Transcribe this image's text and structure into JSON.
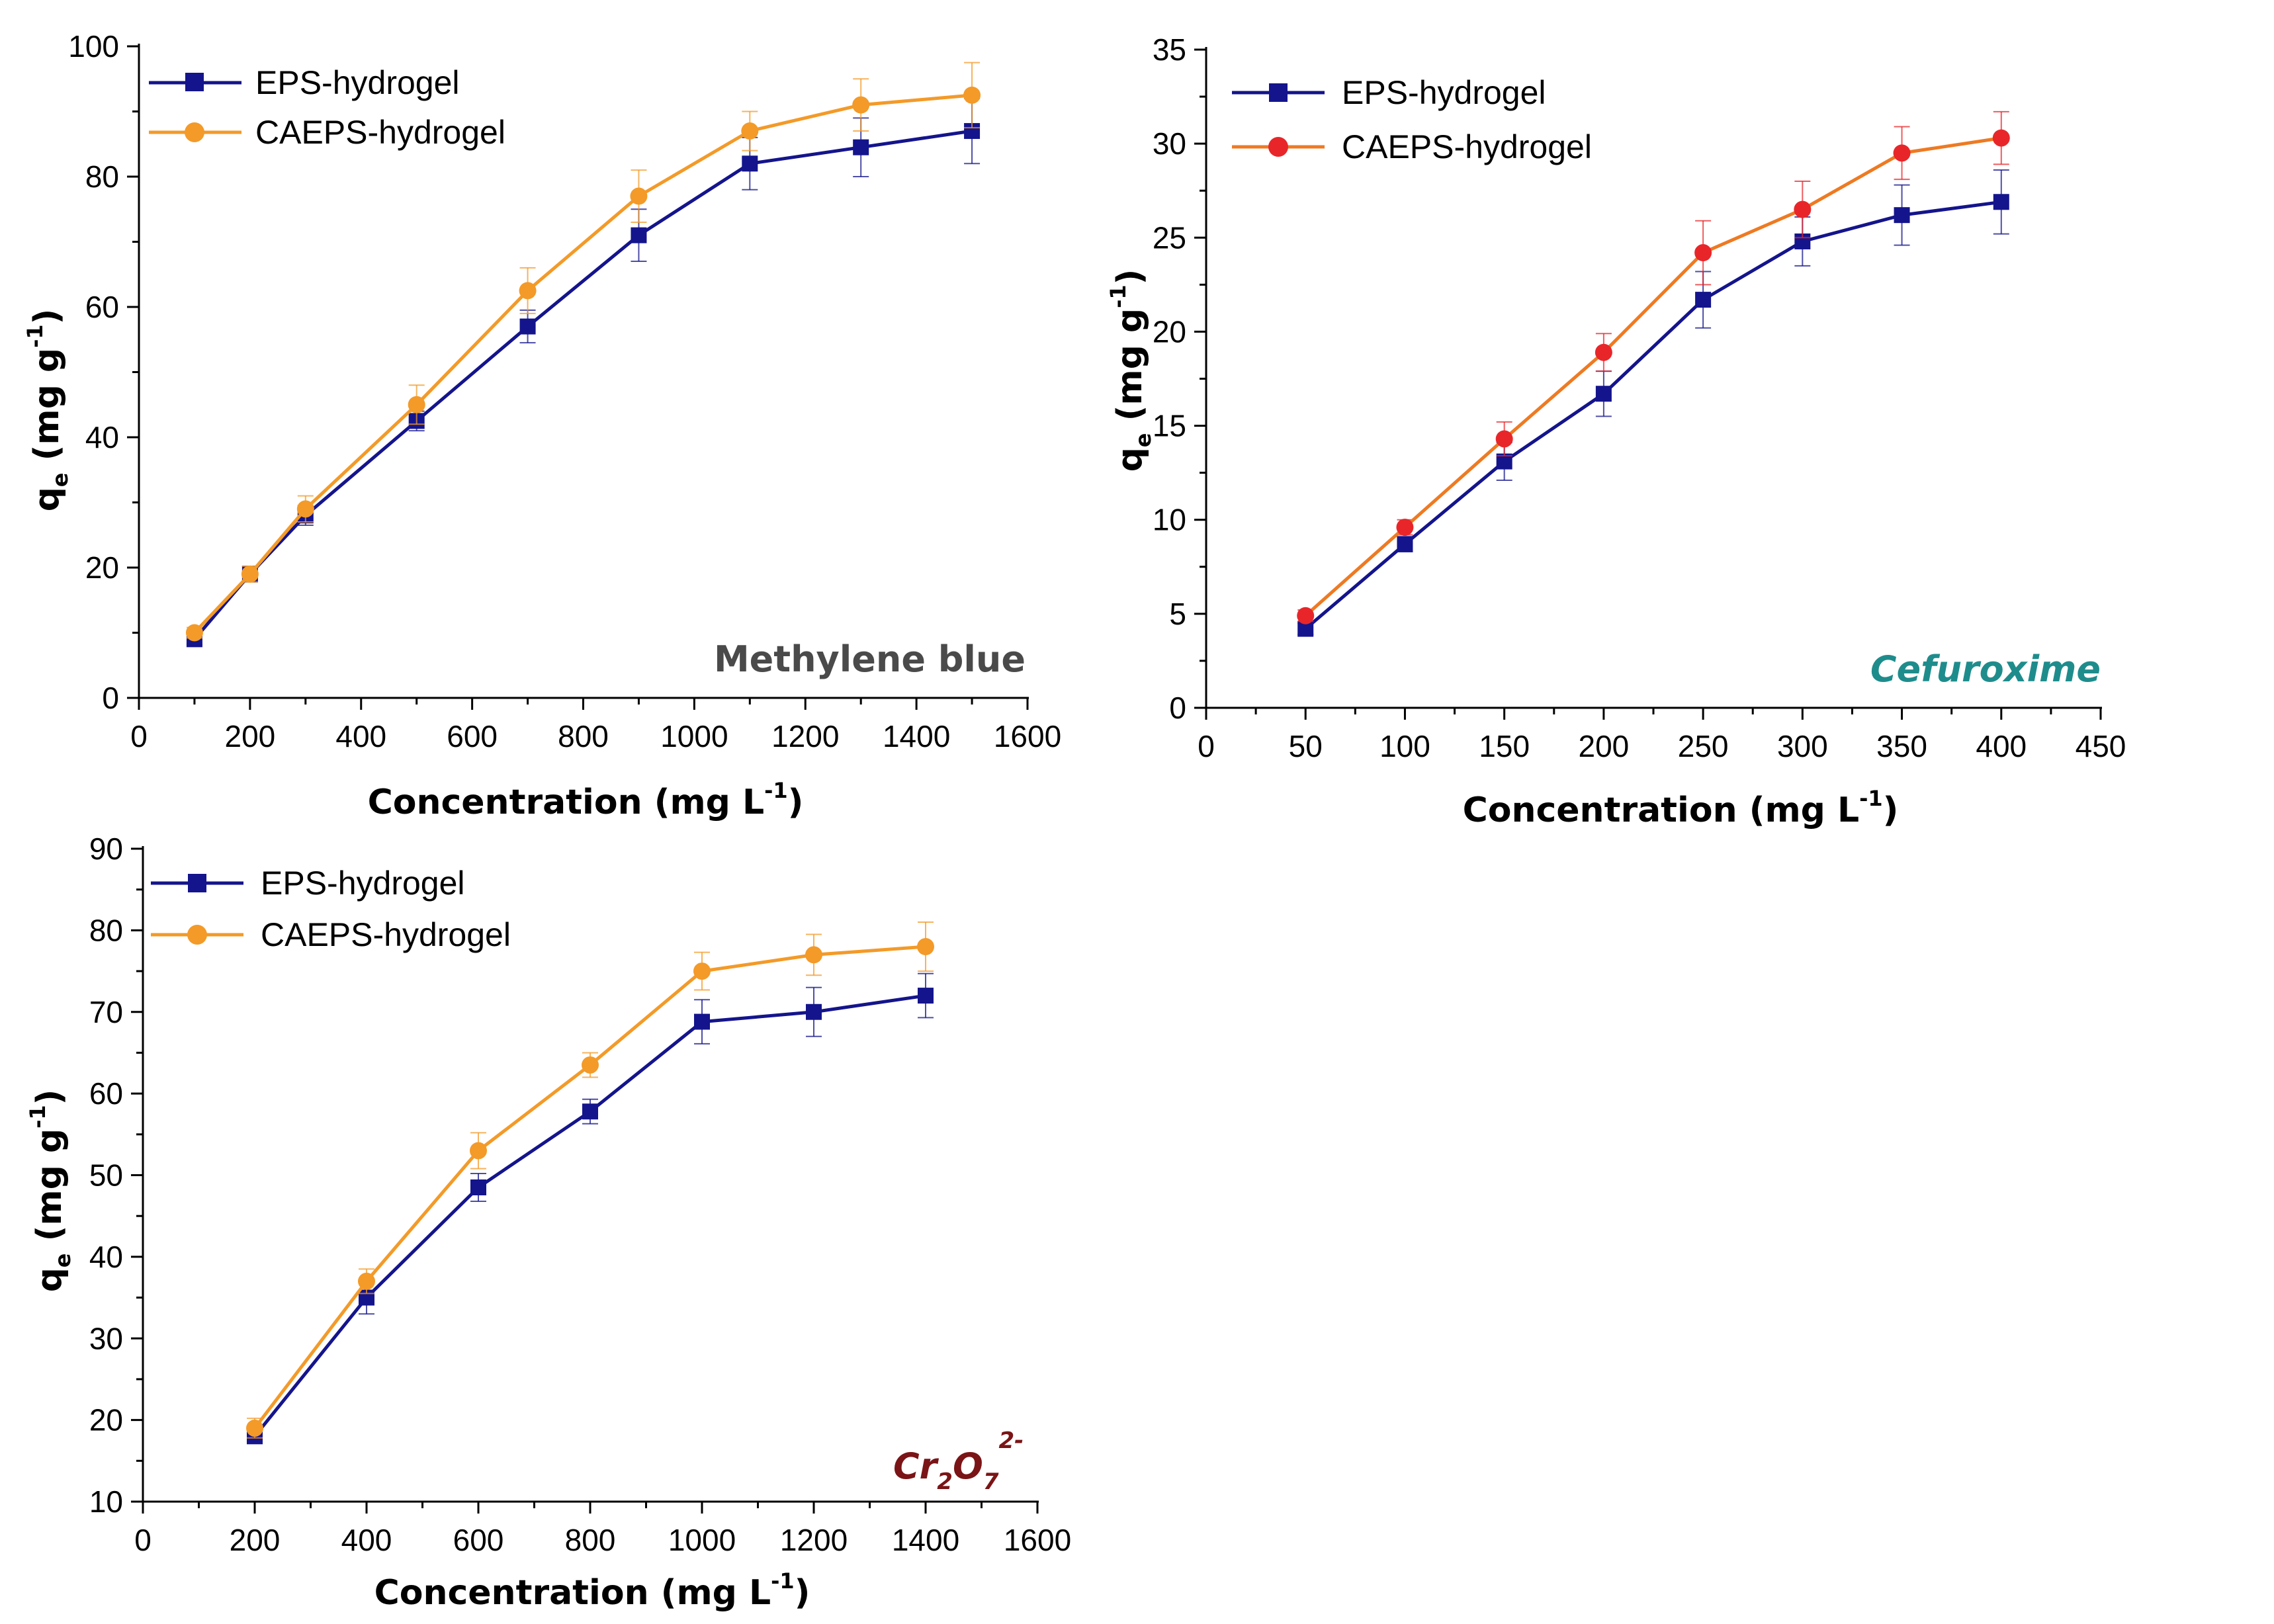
{
  "colors": {
    "eps": "#14148c",
    "caeps": "#f39a28",
    "caeps_marker_cefuroxime": "#e8262a",
    "caeps_line_cefuroxime": "#ee7a22",
    "label_methylene": "#4a4a4a",
    "label_cefuroxime": "#1f8c8c",
    "label_dichromate": "#7a1416",
    "axis": "#000000"
  },
  "chart_data": [
    {
      "id": "methylene-blue",
      "type": "line",
      "annotation": "Methylene blue",
      "xlabel": "Concentration (mg L-1)",
      "xlabel_main": "Concentration (mg L",
      "xlabel_sup": "-1",
      "xlabel_end": ")",
      "ylabel_main": "q",
      "ylabel_sub": "e",
      "ylabel_rest": " (mg g",
      "ylabel_sup": "-1",
      "ylabel_end": ")",
      "xlim": [
        0,
        1600
      ],
      "ylim": [
        0,
        100
      ],
      "xticks": [
        0,
        200,
        400,
        600,
        800,
        1000,
        1200,
        1400,
        1600
      ],
      "yticks": [
        0,
        20,
        40,
        60,
        80,
        100
      ],
      "legend": [
        "EPS-hydrogel",
        "CAEPS-hydrogel"
      ],
      "legend_position": "top-left",
      "series": [
        {
          "name": "EPS-hydrogel",
          "marker": "square",
          "x": [
            100,
            200,
            300,
            500,
            700,
            900,
            1100,
            1300,
            1500
          ],
          "y": [
            9,
            19,
            28,
            42.5,
            57,
            71,
            82,
            84.5,
            87
          ],
          "err": [
            0.8,
            1.2,
            1.5,
            1.5,
            2.5,
            4,
            4,
            4.5,
            5
          ]
        },
        {
          "name": "CAEPS-hydrogel",
          "marker": "circle",
          "x": [
            100,
            200,
            300,
            500,
            700,
            900,
            1100,
            1300,
            1500
          ],
          "y": [
            10,
            19,
            29,
            45,
            62.5,
            77,
            87,
            91,
            92.5
          ],
          "err": [
            0.8,
            1.2,
            2,
            3,
            3.5,
            4,
            3,
            4,
            5
          ]
        }
      ]
    },
    {
      "id": "cefuroxime",
      "type": "line",
      "annotation": "Cefuroxime",
      "xlabel": "Concentration (mg L-1)",
      "xlabel_main": "Concentration (mg L",
      "xlabel_sup": "-1",
      "xlabel_end": ")",
      "ylabel_main": "q",
      "ylabel_sub": "e",
      "ylabel_rest": " (mg g",
      "ylabel_sup": "-1",
      "ylabel_end": ")",
      "xlim": [
        0,
        450
      ],
      "ylim": [
        0,
        35
      ],
      "xticks": [
        0,
        50,
        100,
        150,
        200,
        250,
        300,
        350,
        400,
        450
      ],
      "yticks": [
        0,
        5,
        10,
        15,
        20,
        25,
        30,
        35
      ],
      "legend": [
        "EPS-hydrogel",
        "CAEPS-hydrogel"
      ],
      "legend_position": "top-left",
      "series": [
        {
          "name": "EPS-hydrogel",
          "marker": "square",
          "x": [
            50,
            100,
            150,
            200,
            250,
            300,
            350,
            400
          ],
          "y": [
            4.2,
            8.7,
            13.1,
            16.7,
            21.7,
            24.8,
            26.2,
            26.9
          ],
          "err": [
            0.3,
            0.4,
            1.0,
            1.2,
            1.5,
            1.3,
            1.6,
            1.7
          ]
        },
        {
          "name": "CAEPS-hydrogel",
          "marker": "circle",
          "x": [
            50,
            100,
            150,
            200,
            250,
            300,
            350,
            400
          ],
          "y": [
            4.9,
            9.6,
            14.3,
            18.9,
            24.2,
            26.5,
            29.5,
            30.3
          ],
          "err": [
            0.3,
            0.4,
            0.9,
            1.0,
            1.7,
            1.5,
            1.4,
            1.4
          ]
        }
      ]
    },
    {
      "id": "dichromate",
      "type": "line",
      "annotation_main": "Cr",
      "annotation_sub1": "2",
      "annotation_mid": "O",
      "annotation_sub2": "7",
      "annotation_sup": "2-",
      "xlabel": "Concentration (mg L-1)",
      "xlabel_main": "Concentration (mg L",
      "xlabel_sup": "-1",
      "xlabel_end": ")",
      "ylabel_main": "q",
      "ylabel_sub": "e",
      "ylabel_rest": " (mg g",
      "ylabel_sup": "-1",
      "ylabel_end": ")",
      "xlim": [
        0,
        1600
      ],
      "ylim": [
        10,
        90
      ],
      "xticks": [
        0,
        200,
        400,
        600,
        800,
        1000,
        1200,
        1400,
        1600
      ],
      "yticks": [
        10,
        20,
        30,
        40,
        50,
        60,
        70,
        80,
        90
      ],
      "legend": [
        "EPS-hydrogel",
        "CAEPS-hydrogel"
      ],
      "legend_position": "top-left",
      "series": [
        {
          "name": "EPS-hydrogel",
          "marker": "square",
          "x": [
            200,
            400,
            600,
            800,
            1000,
            1200,
            1400
          ],
          "y": [
            18,
            35,
            48.5,
            57.8,
            68.8,
            70,
            72
          ],
          "err": [
            0.8,
            2,
            1.7,
            1.5,
            2.7,
            3,
            2.7
          ]
        },
        {
          "name": "CAEPS-hydrogel",
          "marker": "circle",
          "x": [
            200,
            400,
            600,
            800,
            1000,
            1200,
            1400
          ],
          "y": [
            19,
            37,
            53,
            63.5,
            75,
            77,
            78
          ],
          "err": [
            1.2,
            1.5,
            2.2,
            1.5,
            2.3,
            2.5,
            3
          ]
        }
      ]
    }
  ]
}
